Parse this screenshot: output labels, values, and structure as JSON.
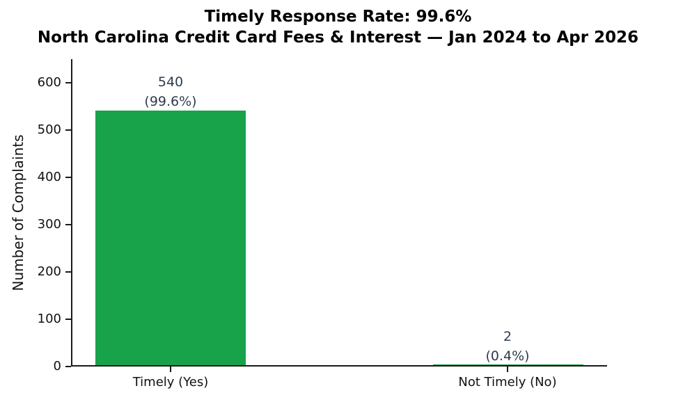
{
  "title": {
    "line1": "Timely Response Rate: 99.6%",
    "line2": "North Carolina Credit Card Fees & Interest — Jan 2024 to Apr 2026"
  },
  "chart_data": {
    "type": "bar",
    "title": "Timely Response Rate: 99.6%",
    "subtitle": "North Carolina Credit Card Fees & Interest — Jan 2024 to Apr 2026",
    "categories": [
      "Timely (Yes)",
      "Not Timely (No)"
    ],
    "values": [
      540,
      2
    ],
    "annotations": [
      {
        "value": "540",
        "percent": "(99.6%)"
      },
      {
        "value": "2",
        "percent": "(0.4%)"
      }
    ],
    "xlabel": "",
    "ylabel": "Number of Complaints",
    "ylim": [
      0,
      650
    ],
    "yticks": [
      0,
      100,
      200,
      300,
      400,
      500,
      600
    ],
    "bar_color": "#18a24a",
    "annotation_color": "#2e3b4e",
    "axis_color": "#1a1a1a",
    "grid": false,
    "legend": false
  }
}
